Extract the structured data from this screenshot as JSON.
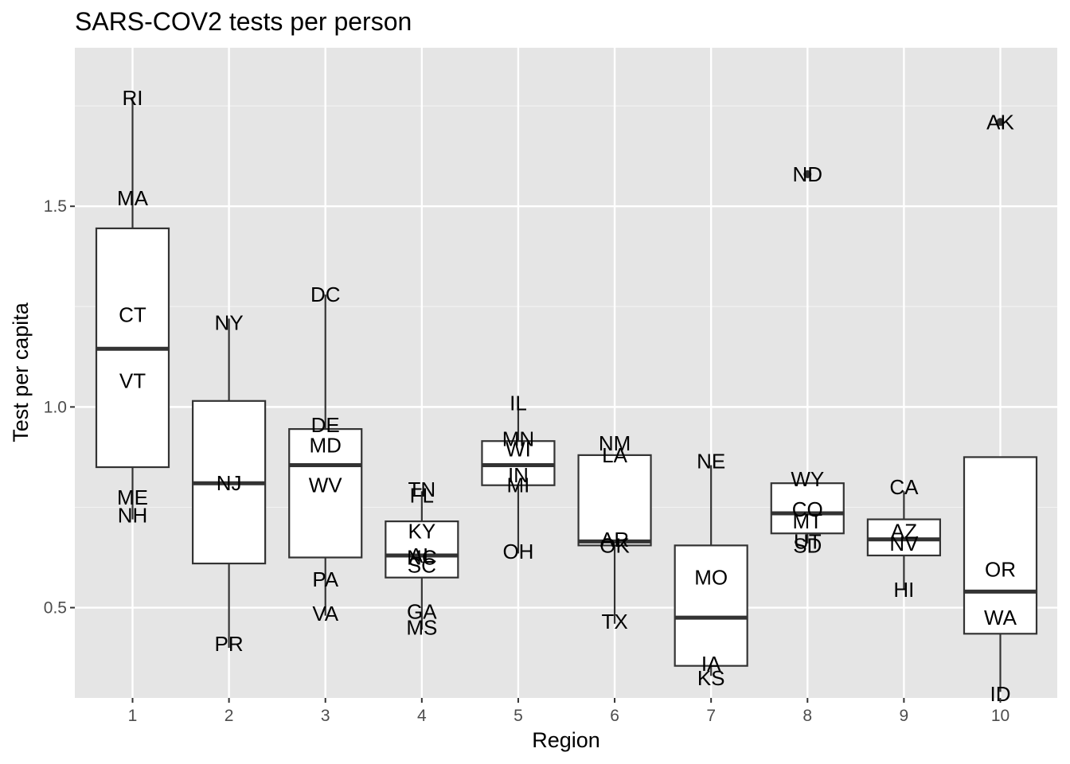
{
  "chart_data": {
    "type": "boxplot",
    "title": "SARS-COV2 tests per person",
    "xlabel": "Region",
    "ylabel": "Test per capita",
    "categories": [
      "1",
      "2",
      "3",
      "4",
      "5",
      "6",
      "7",
      "8",
      "9",
      "10"
    ],
    "ylim": [
      0.275,
      1.895
    ],
    "yticks": [
      0.5,
      1.0,
      1.5
    ],
    "ytick_labels": [
      "0.5",
      "1.0",
      "1.5"
    ],
    "grid": true,
    "background": "#e5e5e5",
    "box_fill": "#ffffff",
    "box_stroke": "#333333",
    "boxes": [
      {
        "region": "1",
        "lower_whisker": 0.72,
        "q1": 0.85,
        "median": 1.145,
        "q3": 1.445,
        "upper_whisker": 1.77,
        "outliers": []
      },
      {
        "region": "2",
        "lower_whisker": 0.4,
        "q1": 0.61,
        "median": 0.81,
        "q3": 1.015,
        "upper_whisker": 1.22,
        "outliers": []
      },
      {
        "region": "3",
        "lower_whisker": 0.48,
        "q1": 0.625,
        "median": 0.855,
        "q3": 0.945,
        "upper_whisker": 1.28,
        "outliers": []
      },
      {
        "region": "4",
        "lower_whisker": 0.445,
        "q1": 0.575,
        "median": 0.63,
        "q3": 0.715,
        "upper_whisker": 0.79,
        "outliers": []
      },
      {
        "region": "5",
        "lower_whisker": 0.635,
        "q1": 0.805,
        "median": 0.855,
        "q3": 0.915,
        "upper_whisker": 1.0,
        "outliers": []
      },
      {
        "region": "6",
        "lower_whisker": 0.46,
        "q1": 0.655,
        "median": 0.665,
        "q3": 0.88,
        "upper_whisker": 0.88,
        "outliers": []
      },
      {
        "region": "7",
        "lower_whisker": 0.33,
        "q1": 0.355,
        "median": 0.475,
        "q3": 0.655,
        "upper_whisker": 0.855,
        "outliers": []
      },
      {
        "region": "8",
        "lower_whisker": 0.66,
        "q1": 0.685,
        "median": 0.735,
        "q3": 0.81,
        "upper_whisker": 0.81,
        "outliers": [
          1.58
        ]
      },
      {
        "region": "9",
        "lower_whisker": 0.545,
        "q1": 0.63,
        "median": 0.67,
        "q3": 0.72,
        "upper_whisker": 0.79,
        "outliers": []
      },
      {
        "region": "10",
        "lower_whisker": 0.29,
        "q1": 0.435,
        "median": 0.54,
        "q3": 0.875,
        "upper_whisker": 0.875,
        "outliers": [
          1.71
        ]
      }
    ],
    "point_labels": [
      {
        "region": "1",
        "label": "RI",
        "value": 1.77
      },
      {
        "region": "1",
        "label": "MA",
        "value": 1.52
      },
      {
        "region": "1",
        "label": "CT",
        "value": 1.23
      },
      {
        "region": "1",
        "label": "VT",
        "value": 1.065
      },
      {
        "region": "1",
        "label": "ME",
        "value": 0.775
      },
      {
        "region": "1",
        "label": "NH",
        "value": 0.73
      },
      {
        "region": "2",
        "label": "NY",
        "value": 1.21
      },
      {
        "region": "2",
        "label": "NJ",
        "value": 0.81
      },
      {
        "region": "2",
        "label": "PR",
        "value": 0.41
      },
      {
        "region": "3",
        "label": "DC",
        "value": 1.28
      },
      {
        "region": "3",
        "label": "DE",
        "value": 0.955
      },
      {
        "region": "3",
        "label": "MD",
        "value": 0.905
      },
      {
        "region": "3",
        "label": "WV",
        "value": 0.805
      },
      {
        "region": "3",
        "label": "PA",
        "value": 0.57
      },
      {
        "region": "3",
        "label": "VA",
        "value": 0.485
      },
      {
        "region": "4",
        "label": "TN",
        "value": 0.795
      },
      {
        "region": "4",
        "label": "FL",
        "value": 0.78
      },
      {
        "region": "4",
        "label": "KY",
        "value": 0.69
      },
      {
        "region": "4",
        "label": "AL",
        "value": 0.63
      },
      {
        "region": "4",
        "label": "NC",
        "value": 0.625
      },
      {
        "region": "4",
        "label": "SC",
        "value": 0.605
      },
      {
        "region": "4",
        "label": "GA",
        "value": 0.49
      },
      {
        "region": "4",
        "label": "MS",
        "value": 0.45
      },
      {
        "region": "5",
        "label": "IL",
        "value": 1.01
      },
      {
        "region": "5",
        "label": "MN",
        "value": 0.92
      },
      {
        "region": "5",
        "label": "WI",
        "value": 0.895
      },
      {
        "region": "5",
        "label": "IN",
        "value": 0.83
      },
      {
        "region": "5",
        "label": "MI",
        "value": 0.805
      },
      {
        "region": "5",
        "label": "OH",
        "value": 0.64
      },
      {
        "region": "6",
        "label": "NM",
        "value": 0.91
      },
      {
        "region": "6",
        "label": "LA",
        "value": 0.88
      },
      {
        "region": "6",
        "label": "AR",
        "value": 0.67
      },
      {
        "region": "6",
        "label": "OK",
        "value": 0.655
      },
      {
        "region": "6",
        "label": "TX",
        "value": 0.465
      },
      {
        "region": "7",
        "label": "NE",
        "value": 0.865
      },
      {
        "region": "7",
        "label": "MO",
        "value": 0.575
      },
      {
        "region": "7",
        "label": "IA",
        "value": 0.36
      },
      {
        "region": "7",
        "label": "KS",
        "value": 0.325
      },
      {
        "region": "8",
        "label": "ND",
        "value": 1.58
      },
      {
        "region": "8",
        "label": "WY",
        "value": 0.82
      },
      {
        "region": "8",
        "label": "CO",
        "value": 0.745
      },
      {
        "region": "8",
        "label": "MT",
        "value": 0.715
      },
      {
        "region": "8",
        "label": "UT",
        "value": 0.665
      },
      {
        "region": "8",
        "label": "SD",
        "value": 0.655
      },
      {
        "region": "9",
        "label": "CA",
        "value": 0.8
      },
      {
        "region": "9",
        "label": "AZ",
        "value": 0.69
      },
      {
        "region": "9",
        "label": "NV",
        "value": 0.66
      },
      {
        "region": "9",
        "label": "HI",
        "value": 0.545
      },
      {
        "region": "10",
        "label": "AK",
        "value": 1.71
      },
      {
        "region": "10",
        "label": "OR",
        "value": 0.595
      },
      {
        "region": "10",
        "label": "WA",
        "value": 0.475
      },
      {
        "region": "10",
        "label": "ID",
        "value": 0.285
      }
    ]
  }
}
